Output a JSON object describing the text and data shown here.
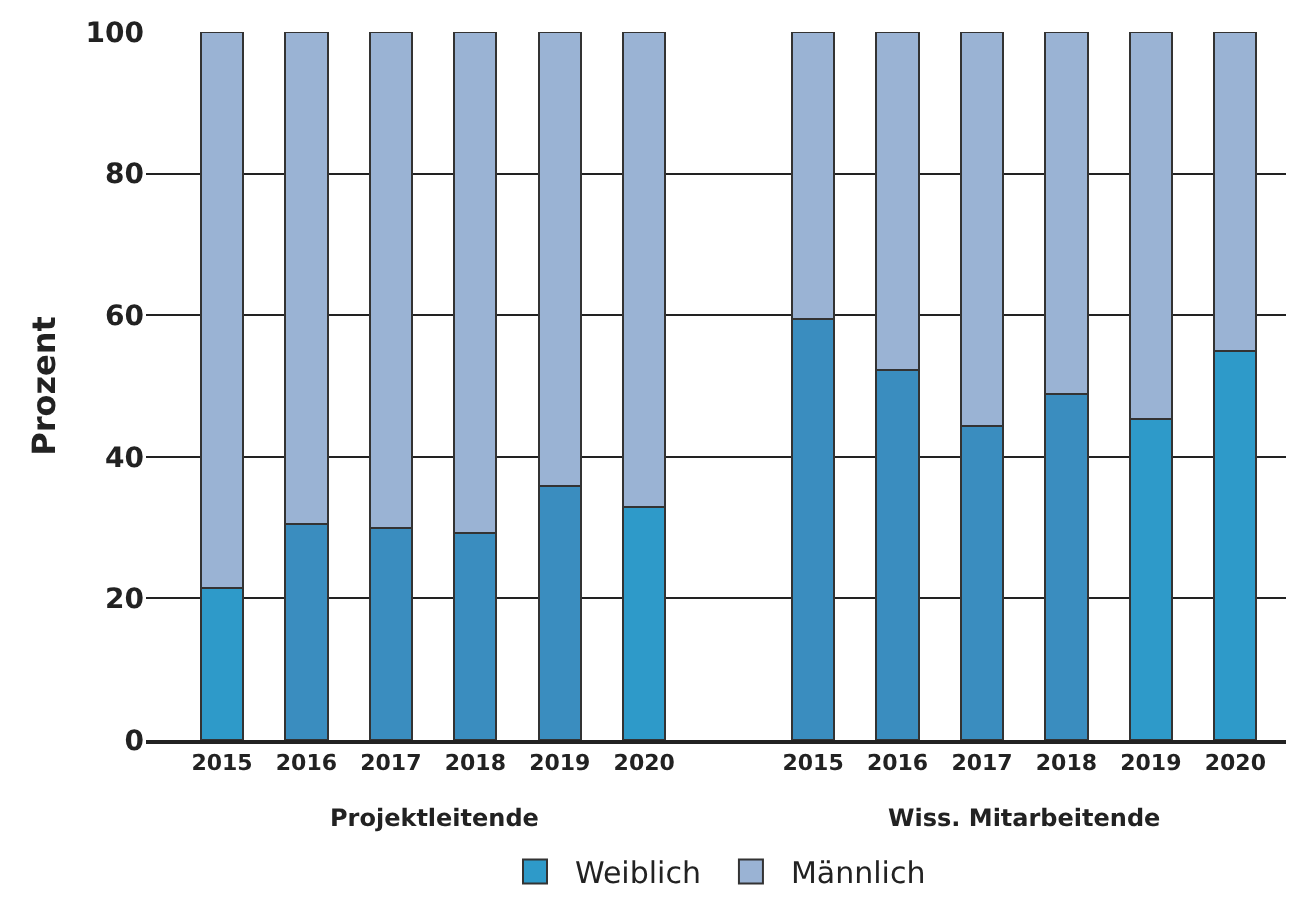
{
  "chart_data": {
    "type": "bar",
    "stacked": true,
    "ylabel": "Prozent",
    "categories": [
      "2015",
      "2016",
      "2017",
      "2018",
      "2019",
      "2020",
      null,
      "2015",
      "2016",
      "2017",
      "2018",
      "2019",
      "2020"
    ],
    "series": [
      {
        "name": "Weiblich",
        "color": "#3a8dbf",
        "colors": [
          "#2e9ac9",
          "#3a8dbf",
          "#3a8dbf",
          "#3a8dbf",
          "#3a8dbf",
          "#2e9ac9",
          null,
          "#3a8dbf",
          "#3a8dbf",
          "#3a8dbf",
          "#3a8dbf",
          "#2e9ac9",
          "#2e9ac9"
        ],
        "values": [
          21.4,
          30.5,
          29.9,
          29.3,
          35.9,
          32.9,
          null,
          59.4,
          52.3,
          44.4,
          48.9,
          45.4,
          54.9
        ]
      },
      {
        "name": "Männlich",
        "color": "#9ab3d4",
        "values": [
          78.6,
          69.5,
          70.1,
          70.7,
          64.1,
          67.1,
          null,
          40.6,
          47.7,
          55.6,
          51.1,
          54.6,
          45.1
        ]
      }
    ],
    "annotations": [
      "Projektleitende",
      "Wiss. Mitarbeitende"
    ],
    "ylim": [
      0,
      100
    ],
    "yticks": [
      0,
      20,
      40,
      60,
      80,
      100
    ],
    "grid": "y",
    "legend": "bottom"
  }
}
